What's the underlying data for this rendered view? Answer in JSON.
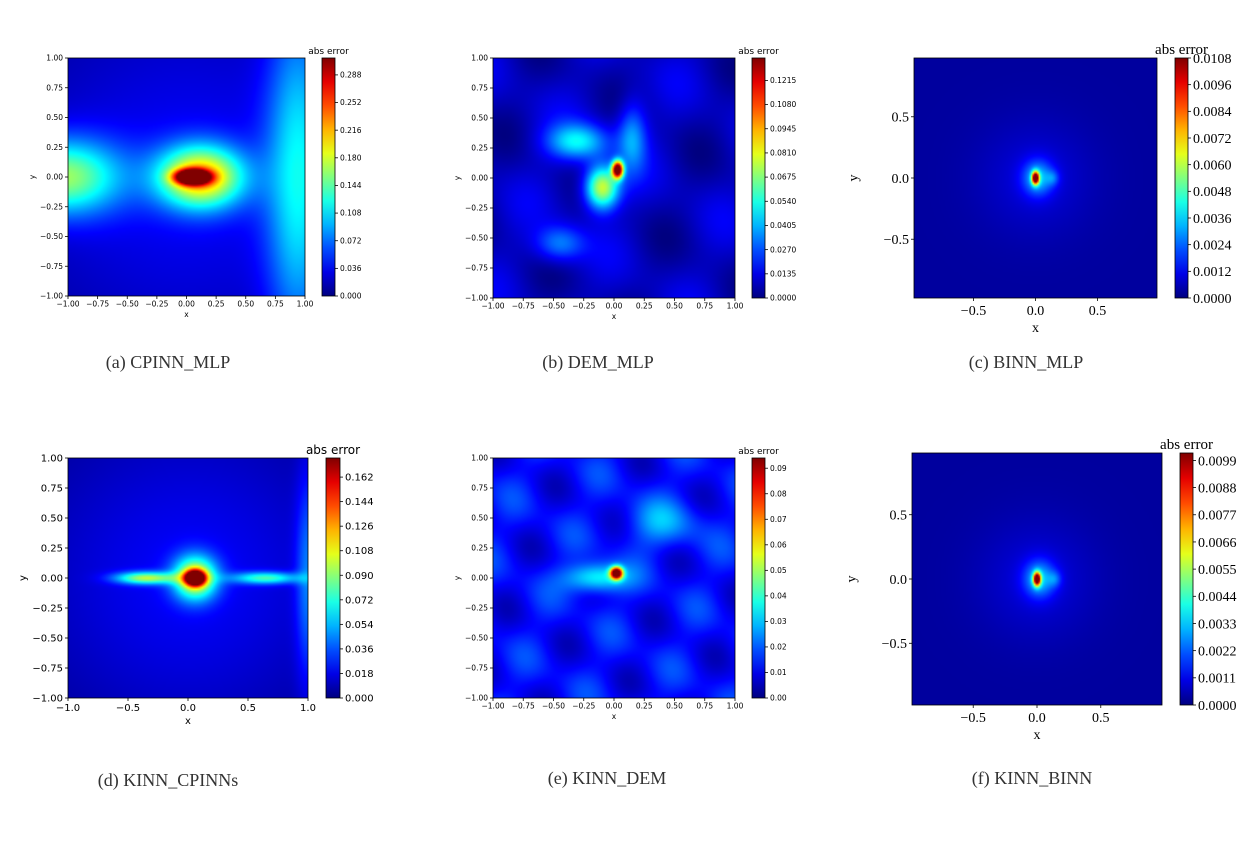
{
  "chart_data": [
    {
      "type": "heatmap",
      "caption": "(a) CPINN_MLP",
      "colorbar_label": "abs error",
      "xlabel": "x",
      "ylabel": "y",
      "xlim": [
        -1.0,
        1.0
      ],
      "ylim": [
        -1.0,
        1.0
      ],
      "xticks": [
        "−1.00",
        "−0.75",
        "−0.50",
        "−0.25",
        "0.00",
        "0.25",
        "0.50",
        "0.75",
        "1.00"
      ],
      "yticks": [
        "−1.00",
        "−0.75",
        "−0.50",
        "−0.25",
        "0.00",
        "0.25",
        "0.50",
        "0.75",
        "1.00"
      ],
      "colorbar_ticks": [
        "0.000",
        "0.036",
        "0.072",
        "0.108",
        "0.144",
        "0.180",
        "0.216",
        "0.252",
        "0.288"
      ],
      "colorbar_range": [
        0.0,
        0.31
      ],
      "colormap": "jet",
      "peak_error": 0.31,
      "peak_location": [
        0.05,
        0.0
      ]
    },
    {
      "type": "heatmap",
      "caption": "(b) DEM_MLP",
      "colorbar_label": "abs error",
      "xlabel": "x",
      "ylabel": "y",
      "xlim": [
        -1.0,
        1.0
      ],
      "ylim": [
        -1.0,
        1.0
      ],
      "xticks": [
        "−1.00",
        "−0.75",
        "−0.50",
        "−0.25",
        "0.00",
        "0.25",
        "0.50",
        "0.75",
        "1.00"
      ],
      "yticks": [
        "−1.00",
        "−0.75",
        "−0.50",
        "−0.25",
        "0.00",
        "0.25",
        "0.50",
        "0.75",
        "1.00"
      ],
      "colorbar_ticks": [
        "0.0000",
        "0.0135",
        "0.0270",
        "0.0405",
        "0.0540",
        "0.0675",
        "0.0810",
        "0.0945",
        "0.1080",
        "0.1215"
      ],
      "colorbar_range": [
        0.0,
        0.134
      ],
      "colormap": "jet",
      "peak_error": 0.134,
      "peak_location": [
        0.03,
        0.07
      ]
    },
    {
      "type": "heatmap",
      "caption": "(c) BINN_MLP",
      "colorbar_label": "abs error",
      "xlabel": "x",
      "ylabel": "y",
      "xlim": [
        -0.98,
        0.98
      ],
      "ylim": [
        -0.98,
        0.98
      ],
      "xticks": [
        "−0.5",
        "0.0",
        "0.5"
      ],
      "yticks": [
        "−0.5",
        "0.0",
        "0.5"
      ],
      "colorbar_ticks": [
        "0.0000",
        "0.0012",
        "0.0024",
        "0.0036",
        "0.0048",
        "0.0060",
        "0.0072",
        "0.0084",
        "0.0096",
        "0.0108"
      ],
      "colorbar_range": [
        0.0,
        0.0108
      ],
      "colormap": "jet",
      "peak_error": 0.0108,
      "peak_location": [
        0.0,
        0.0
      ]
    },
    {
      "type": "heatmap",
      "caption": "(d) KINN_CPINNs",
      "colorbar_label": "abs error",
      "xlabel": "x",
      "ylabel": "y",
      "xlim": [
        -1.0,
        1.0
      ],
      "ylim": [
        -1.0,
        1.0
      ],
      "xticks": [
        "−1.0",
        "−0.5",
        "0.0",
        "0.5",
        "1.0"
      ],
      "yticks": [
        "−1.00",
        "−0.75",
        "−0.50",
        "−0.25",
        "0.00",
        "0.25",
        "0.50",
        "0.75",
        "1.00"
      ],
      "colorbar_ticks": [
        "0.000",
        "0.018",
        "0.036",
        "0.054",
        "0.072",
        "0.090",
        "0.108",
        "0.126",
        "0.144",
        "0.162"
      ],
      "colorbar_range": [
        0.0,
        0.176
      ],
      "colormap": "jet",
      "peak_error": 0.176,
      "peak_location": [
        0.06,
        0.0
      ]
    },
    {
      "type": "heatmap",
      "caption": "(e) KINN_DEM",
      "colorbar_label": "abs error",
      "xlabel": "x",
      "ylabel": "y",
      "xlim": [
        -1.0,
        1.0
      ],
      "ylim": [
        -1.0,
        1.0
      ],
      "xticks": [
        "−1.00",
        "−0.75",
        "−0.50",
        "−0.25",
        "0.00",
        "0.25",
        "0.50",
        "0.75",
        "1.00"
      ],
      "yticks": [
        "−1.00",
        "−0.75",
        "−0.50",
        "−0.25",
        "0.00",
        "0.25",
        "0.50",
        "0.75",
        "1.00"
      ],
      "colorbar_ticks": [
        "0.00",
        "0.01",
        "0.02",
        "0.03",
        "0.04",
        "0.05",
        "0.06",
        "0.07",
        "0.08",
        "0.09"
      ],
      "colorbar_range": [
        0.0,
        0.094
      ],
      "colormap": "jet",
      "peak_error": 0.094,
      "peak_location": [
        0.02,
        0.04
      ]
    },
    {
      "type": "heatmap",
      "caption": "(f) KINN_BINN",
      "colorbar_label": "abs error",
      "xlabel": "x",
      "ylabel": "y",
      "xlim": [
        -0.98,
        0.98
      ],
      "ylim": [
        -0.98,
        0.98
      ],
      "xticks": [
        "−0.5",
        "0.0",
        "0.5"
      ],
      "yticks": [
        "−0.5",
        "0.0",
        "0.5"
      ],
      "colorbar_ticks": [
        "0.0000",
        "0.0011",
        "0.0022",
        "0.0033",
        "0.0044",
        "0.0055",
        "0.0066",
        "0.0077",
        "0.0088",
        "0.0099"
      ],
      "colorbar_range": [
        0.0,
        0.0102
      ],
      "colormap": "jet",
      "peak_error": 0.0102,
      "peak_location": [
        0.0,
        0.0
      ]
    }
  ]
}
